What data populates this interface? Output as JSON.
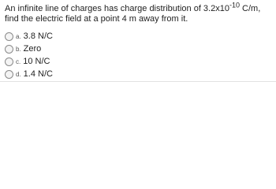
{
  "question": {
    "text_before": "An infinite line of charges has charge distribution of 3.2x10",
    "exponent": "-10",
    "text_after": "C/m, find the electric field at a point 4 m away from it."
  },
  "options": [
    {
      "letter": "a.",
      "text": "3.8 N/C"
    },
    {
      "letter": "b.",
      "text": "Zero"
    },
    {
      "letter": "c.",
      "text": "10 N/C"
    },
    {
      "letter": "d.",
      "text": "1.4 N/C"
    }
  ]
}
